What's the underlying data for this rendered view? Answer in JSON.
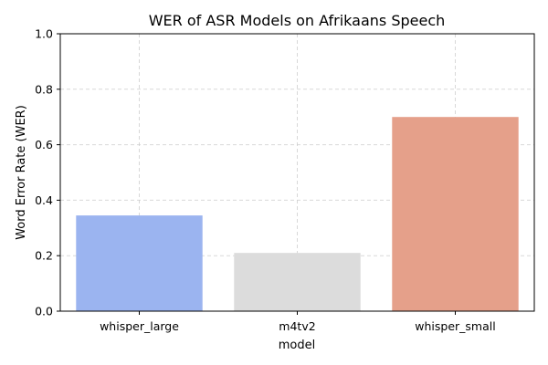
{
  "chart_data": {
    "type": "bar",
    "title": "WER of ASR Models on Afrikaans Speech",
    "xlabel": "model",
    "ylabel": "Word Error Rate (WER)",
    "categories": [
      "whisper_large",
      "m4tv2",
      "whisper_small"
    ],
    "values": [
      0.345,
      0.21,
      0.7
    ],
    "colors": [
      "#9bb4f0",
      "#dcdcdc",
      "#e5a08a"
    ],
    "ylim": [
      0,
      1.0
    ],
    "yticks": [
      0.0,
      0.2,
      0.4,
      0.6,
      0.8,
      1.0
    ],
    "ytick_labels": [
      "0.0",
      "0.2",
      "0.4",
      "0.6",
      "0.8",
      "1.0"
    ],
    "grid": true
  }
}
